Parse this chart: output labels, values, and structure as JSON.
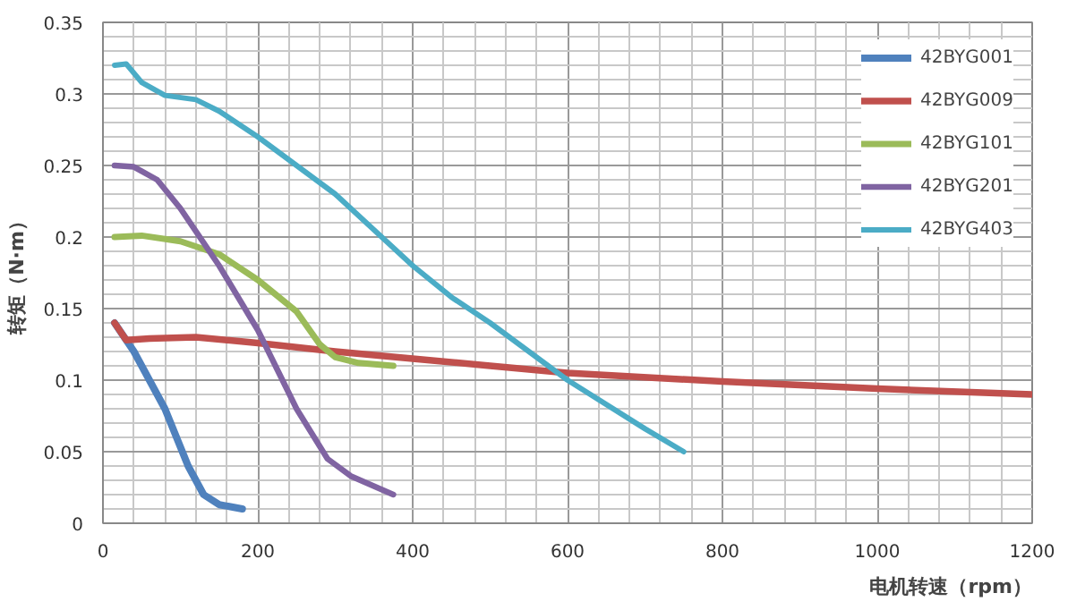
{
  "chart_data": {
    "type": "line",
    "xlabel": "电机转速（rpm）",
    "ylabel": "转矩（N·m）",
    "xlim": [
      0,
      1200
    ],
    "ylim": [
      0,
      0.35
    ],
    "xticks": [
      0,
      200,
      400,
      600,
      800,
      1000,
      1200
    ],
    "yticks": [
      0,
      0.05,
      0.1,
      0.15,
      0.2,
      0.25,
      0.3,
      0.35
    ],
    "grid": true,
    "legend": "top right",
    "line_style": "solid",
    "marker": "none",
    "series": [
      {
        "name": "42BYG001",
        "color": "#4f81bd",
        "x": [
          15,
          40,
          80,
          110,
          130,
          150,
          180
        ],
        "values": [
          0.14,
          0.12,
          0.08,
          0.04,
          0.02,
          0.013,
          0.01
        ]
      },
      {
        "name": "42BYG009",
        "color": "#c0504d",
        "x": [
          15,
          30,
          60,
          120,
          200,
          300,
          400,
          500,
          600,
          800,
          1000,
          1200
        ],
        "values": [
          0.14,
          0.128,
          0.129,
          0.13,
          0.126,
          0.12,
          0.115,
          0.11,
          0.105,
          0.099,
          0.094,
          0.09
        ]
      },
      {
        "name": "42BYG101",
        "color": "#9bbb59",
        "x": [
          15,
          50,
          100,
          150,
          200,
          250,
          280,
          300,
          330,
          375
        ],
        "values": [
          0.2,
          0.201,
          0.197,
          0.188,
          0.17,
          0.148,
          0.125,
          0.116,
          0.112,
          0.11
        ]
      },
      {
        "name": "42BYG201",
        "color": "#8064a2",
        "x": [
          15,
          40,
          70,
          100,
          150,
          200,
          250,
          290,
          320,
          375
        ],
        "values": [
          0.25,
          0.249,
          0.24,
          0.22,
          0.18,
          0.135,
          0.08,
          0.045,
          0.033,
          0.02
        ]
      },
      {
        "name": "42BYG403",
        "color": "#4bacc6",
        "x": [
          15,
          30,
          50,
          80,
          120,
          150,
          200,
          300,
          400,
          450,
          500,
          600,
          700,
          750
        ],
        "values": [
          0.32,
          0.321,
          0.308,
          0.299,
          0.296,
          0.288,
          0.27,
          0.23,
          0.18,
          0.158,
          0.14,
          0.1,
          0.066,
          0.05
        ]
      }
    ]
  }
}
